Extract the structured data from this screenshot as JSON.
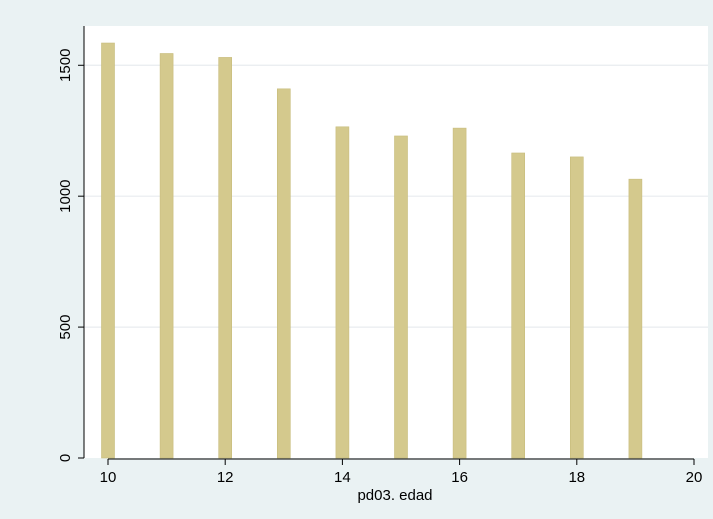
{
  "chart_data": {
    "type": "bar",
    "title": "",
    "xlabel": "pd03. edad",
    "ylabel": "",
    "x": [
      10,
      11,
      12,
      13,
      14,
      15,
      16,
      17,
      18,
      19
    ],
    "values": [
      1585,
      1545,
      1530,
      1410,
      1265,
      1230,
      1260,
      1165,
      1150,
      1065
    ],
    "xlim": [
      10,
      20
    ],
    "ylim": [
      0,
      1650
    ],
    "xticks": [
      10,
      12,
      14,
      16,
      18,
      20
    ],
    "yticks": [
      0,
      500,
      1000,
      1500
    ],
    "grid": true,
    "legend": "none",
    "colors": {
      "background": "#eaf2f3",
      "plot_background": "#ffffff",
      "bar_fill": "#d4c98d",
      "bar_edge": "#c7bc7c",
      "grid": "#e8ecef",
      "axis": "#000000"
    }
  }
}
